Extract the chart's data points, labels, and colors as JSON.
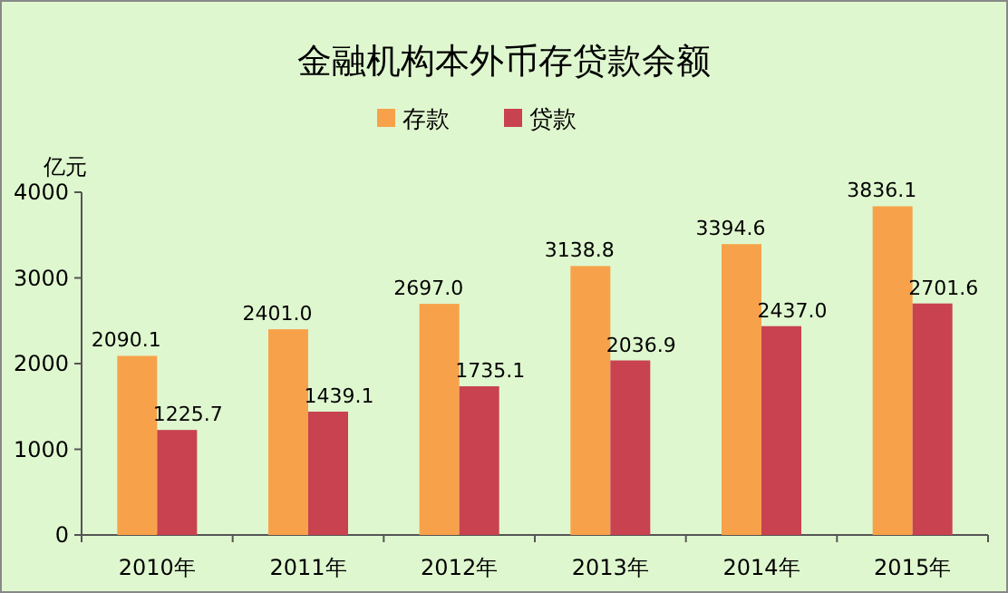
{
  "chart_data": {
    "type": "bar",
    "title": "金融机构本外币存贷款余额",
    "ylabel": "亿元",
    "categories": [
      "2010年",
      "2011年",
      "2012年",
      "2013年",
      "2014年",
      "2015年"
    ],
    "series": [
      {
        "name": "存款",
        "color": "#f7a24a",
        "values": [
          2090.1,
          2401,
          2697,
          3138.8,
          3394.6,
          3836.1
        ],
        "value_labels": [
          "2090.1",
          "2401.0",
          "2697.0",
          "3138.8",
          "3394.6",
          "3836.1"
        ]
      },
      {
        "name": "贷款",
        "color": "#c8424f",
        "values": [
          1225.7,
          1439.1,
          1735.1,
          2036.9,
          2437,
          2701.6
        ],
        "value_labels": [
          "1225.7",
          "1439.1",
          "1735.1",
          "2036.9",
          "2437.0",
          "2701.6"
        ]
      }
    ],
    "ylim": [
      0,
      4000
    ],
    "yticks": [
      0,
      1000,
      2000,
      3000,
      4000
    ],
    "legend": "top",
    "grid": false
  }
}
